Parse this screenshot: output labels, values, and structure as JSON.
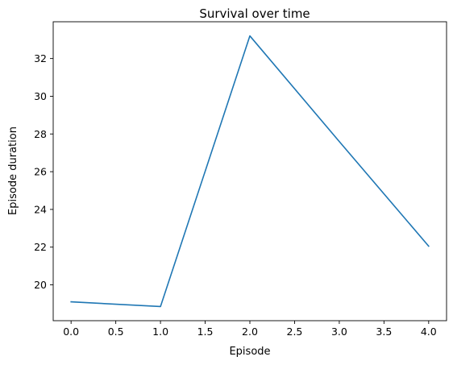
{
  "chart_data": {
    "type": "line",
    "title": "Survival over time",
    "xlabel": "Episode",
    "ylabel": "Episode duration",
    "x": [
      0,
      1,
      2,
      3,
      4
    ],
    "series": [
      {
        "values": [
          19.1,
          18.85,
          33.2,
          27.6,
          22.05
        ],
        "color": "#1f77b4"
      }
    ],
    "xlim": [
      -0.2,
      4.2
    ],
    "ylim": [
      18.1,
      33.95
    ],
    "xticks": [
      0.0,
      0.5,
      1.0,
      1.5,
      2.0,
      2.5,
      3.0,
      3.5,
      4.0
    ],
    "xtick_labels": [
      "0.0",
      "0.5",
      "1.0",
      "1.5",
      "2.0",
      "2.5",
      "3.0",
      "3.5",
      "4.0"
    ],
    "yticks": [
      20,
      22,
      24,
      26,
      28,
      30,
      32
    ],
    "ytick_labels": [
      "20",
      "22",
      "24",
      "26",
      "28",
      "30",
      "32"
    ],
    "grid": false,
    "legend": false
  }
}
